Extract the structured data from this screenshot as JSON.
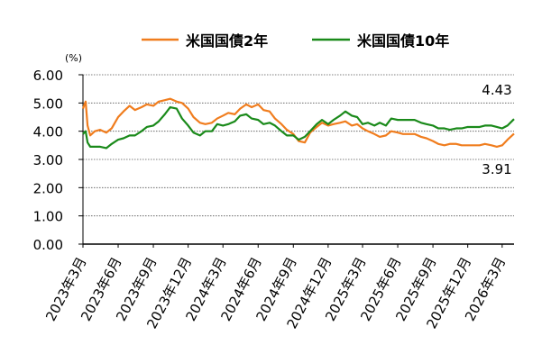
{
  "chart_data": {
    "type": "line",
    "unit_label": "(%)",
    "ylim": [
      0,
      6
    ],
    "y_ticks": [
      "0.00",
      "1.00",
      "2.00",
      "3.00",
      "4.00",
      "5.00",
      "6.00"
    ],
    "x_ticks": [
      "2023年3月",
      "2023年6月",
      "2023年9月",
      "2023年12月",
      "2024年3月",
      "2024年6月",
      "2024年9月",
      "2024年12月",
      "2025年3月",
      "2025年6月",
      "2025年9月",
      "2025年12月",
      "2026年3月"
    ],
    "grid": "horizontal dotted",
    "legend_position": "top",
    "series": [
      {
        "name": "米国国債2年",
        "color": "#f07d1e",
        "end_label": "3.91",
        "x": [
          "2023-03-01",
          "2023-03-08",
          "2023-03-13",
          "2023-03-20",
          "2023-04-01",
          "2023-04-15",
          "2023-05-01",
          "2023-05-15",
          "2023-06-01",
          "2023-06-15",
          "2023-07-01",
          "2023-07-15",
          "2023-08-01",
          "2023-08-15",
          "2023-09-01",
          "2023-09-15",
          "2023-10-01",
          "2023-10-15",
          "2023-11-01",
          "2023-11-15",
          "2023-12-01",
          "2023-12-15",
          "2024-01-01",
          "2024-01-15",
          "2024-02-01",
          "2024-02-15",
          "2024-03-01",
          "2024-03-15",
          "2024-04-01",
          "2024-04-15",
          "2024-05-01",
          "2024-05-15",
          "2024-06-01",
          "2024-06-15",
          "2024-07-01",
          "2024-07-15",
          "2024-08-01",
          "2024-08-15",
          "2024-09-01",
          "2024-09-15",
          "2024-10-01",
          "2024-10-15",
          "2024-11-01",
          "2024-11-15",
          "2024-12-01",
          "2024-12-15",
          "2025-01-01",
          "2025-01-15",
          "2025-02-01",
          "2025-02-15",
          "2025-03-01",
          "2025-03-15",
          "2025-04-01",
          "2025-04-15",
          "2025-05-01",
          "2025-05-15",
          "2025-06-01",
          "2025-06-15",
          "2025-07-01",
          "2025-07-15",
          "2025-08-01",
          "2025-08-15",
          "2025-09-01",
          "2025-09-15",
          "2025-10-01",
          "2025-10-15",
          "2025-11-01",
          "2025-11-15",
          "2025-12-01",
          "2025-12-15",
          "2026-01-01",
          "2026-01-15",
          "2026-02-01",
          "2026-02-15",
          "2026-03-01",
          "2026-03-15",
          "2026-04-01"
        ],
        "values": [
          4.8,
          5.05,
          4.2,
          3.85,
          4.0,
          4.05,
          3.95,
          4.1,
          4.5,
          4.7,
          4.9,
          4.75,
          4.85,
          4.95,
          4.9,
          5.05,
          5.1,
          5.15,
          5.05,
          5.0,
          4.8,
          4.5,
          4.3,
          4.25,
          4.3,
          4.45,
          4.55,
          4.65,
          4.6,
          4.8,
          4.95,
          4.85,
          4.95,
          4.75,
          4.7,
          4.45,
          4.25,
          4.05,
          3.9,
          3.65,
          3.6,
          3.95,
          4.15,
          4.3,
          4.2,
          4.25,
          4.3,
          4.35,
          4.2,
          4.25,
          4.1,
          4.0,
          3.9,
          3.8,
          3.85,
          4.0,
          3.95,
          3.9,
          3.9,
          3.9,
          3.8,
          3.75,
          3.65,
          3.55,
          3.5,
          3.55,
          3.55,
          3.5,
          3.5,
          3.5,
          3.5,
          3.55,
          3.5,
          3.45,
          3.5,
          3.7,
          3.91
        ]
      },
      {
        "name": "米国国債10年",
        "color": "#1a8a1a",
        "end_label": "4.43",
        "x": [
          "2023-03-01",
          "2023-03-08",
          "2023-03-13",
          "2023-03-20",
          "2023-04-01",
          "2023-04-15",
          "2023-05-01",
          "2023-05-15",
          "2023-06-01",
          "2023-06-15",
          "2023-07-01",
          "2023-07-15",
          "2023-08-01",
          "2023-08-15",
          "2023-09-01",
          "2023-09-15",
          "2023-10-01",
          "2023-10-15",
          "2023-11-01",
          "2023-11-15",
          "2023-12-01",
          "2023-12-15",
          "2024-01-01",
          "2024-01-15",
          "2024-02-01",
          "2024-02-15",
          "2024-03-01",
          "2024-03-15",
          "2024-04-01",
          "2024-04-15",
          "2024-05-01",
          "2024-05-15",
          "2024-06-01",
          "2024-06-15",
          "2024-07-01",
          "2024-07-15",
          "2024-08-01",
          "2024-08-15",
          "2024-09-01",
          "2024-09-15",
          "2024-10-01",
          "2024-10-15",
          "2024-11-01",
          "2024-11-15",
          "2024-12-01",
          "2024-12-15",
          "2025-01-01",
          "2025-01-15",
          "2025-02-01",
          "2025-02-15",
          "2025-03-01",
          "2025-03-15",
          "2025-04-01",
          "2025-04-15",
          "2025-05-01",
          "2025-05-15",
          "2025-06-01",
          "2025-06-15",
          "2025-07-01",
          "2025-07-15",
          "2025-08-01",
          "2025-08-15",
          "2025-09-01",
          "2025-09-15",
          "2025-10-01",
          "2025-10-15",
          "2025-11-01",
          "2025-11-15",
          "2025-12-01",
          "2025-12-15",
          "2026-01-01",
          "2026-01-15",
          "2026-02-01",
          "2026-02-15",
          "2026-03-01",
          "2026-03-15",
          "2026-04-01"
        ],
        "values": [
          3.9,
          4.0,
          3.6,
          3.45,
          3.45,
          3.45,
          3.4,
          3.55,
          3.7,
          3.75,
          3.85,
          3.85,
          4.0,
          4.15,
          4.2,
          4.35,
          4.6,
          4.85,
          4.8,
          4.45,
          4.2,
          3.95,
          3.85,
          4.0,
          4.0,
          4.25,
          4.2,
          4.25,
          4.35,
          4.55,
          4.6,
          4.45,
          4.4,
          4.25,
          4.3,
          4.2,
          4.0,
          3.85,
          3.85,
          3.7,
          3.8,
          4.0,
          4.25,
          4.4,
          4.25,
          4.4,
          4.55,
          4.7,
          4.55,
          4.5,
          4.25,
          4.3,
          4.2,
          4.3,
          4.2,
          4.45,
          4.4,
          4.4,
          4.4,
          4.4,
          4.3,
          4.25,
          4.2,
          4.1,
          4.1,
          4.05,
          4.1,
          4.1,
          4.15,
          4.15,
          4.15,
          4.2,
          4.2,
          4.15,
          4.1,
          4.2,
          4.43
        ]
      }
    ]
  }
}
